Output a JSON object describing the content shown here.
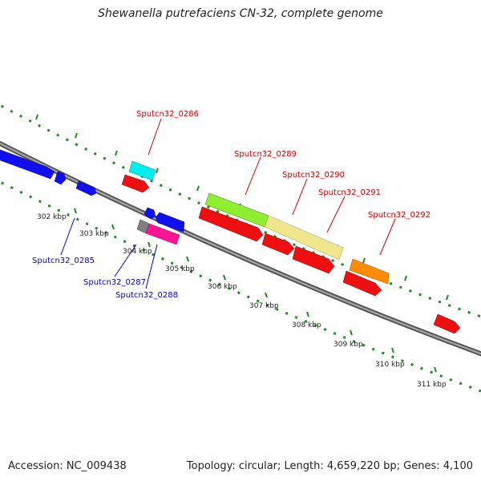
{
  "header": {
    "title": "Shewanella putrefaciens CN-32, complete genome"
  },
  "footer": {
    "accession": "Accession: NC_009438",
    "summary": "Topology: circular; Length: 4,659,220 bp; Genes: 4,100"
  },
  "colors": {
    "backbone": "#808080",
    "ticks": "#228B22",
    "label_reverse": "#0000cc",
    "label_forward": "#cc0000",
    "gene_blue": "#1010ee",
    "gene_red": "#ee1010",
    "gene_cyan": "#00eeee",
    "gene_green": "#90ee30",
    "gene_khaki": "#f0e68c",
    "gene_orange": "#ff8c00",
    "gene_magenta": "#ff1493",
    "gene_gray": "#808080"
  },
  "scale": {
    "ticks": [
      {
        "label": "302 kbp"
      },
      {
        "label": "303 kbp"
      },
      {
        "label": "304 kbp"
      },
      {
        "label": "305 kbp"
      },
      {
        "label": "306 kbp"
      },
      {
        "label": "307 kbp"
      },
      {
        "label": "308 kbp"
      },
      {
        "label": "309 kbp"
      },
      {
        "label": "310 kbp"
      },
      {
        "label": "311 kbp"
      }
    ]
  },
  "gene_labels": [
    {
      "name": "Sputcn32_0285"
    },
    {
      "name": "Sputcn32_0286"
    },
    {
      "name": "Sputcn32_0287"
    },
    {
      "name": "Sputcn32_0288"
    },
    {
      "name": "Sputcn32_0289"
    },
    {
      "name": "Sputcn32_0290"
    },
    {
      "name": "Sputcn32_0291"
    },
    {
      "name": "Sputcn32_0292"
    }
  ]
}
